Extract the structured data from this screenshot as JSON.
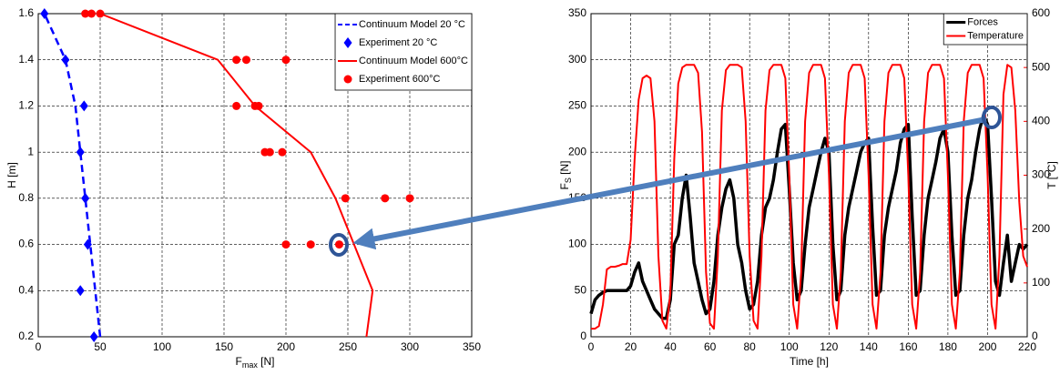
{
  "chart_data": [
    {
      "type": "line",
      "xlabel_parts": [
        "F",
        "max",
        " [N]"
      ],
      "ylabel": "H [m]",
      "xlim": [
        0,
        350
      ],
      "xticks": [
        0,
        50,
        100,
        150,
        200,
        250,
        300,
        350
      ],
      "ylim": [
        0.2,
        1.6
      ],
      "yticks": [
        0.2,
        0.4,
        0.6,
        0.8,
        1,
        1.2,
        1.4,
        1.6
      ],
      "grid": true,
      "legend": "upper right",
      "series": [
        {
          "name": "Continuum Model 20 °C",
          "color": "#0000ff",
          "style": "dashed",
          "x": [
            50,
            46,
            42,
            38,
            34,
            30,
            22,
            5
          ],
          "values": [
            0.2,
            0.4,
            0.6,
            0.8,
            1,
            1.2,
            1.4,
            1.6
          ]
        },
        {
          "name": "Experiment 20 °C",
          "color": "#0000ff",
          "style": "diamond",
          "x": [
            45,
            34,
            40,
            38,
            34,
            37,
            22,
            5
          ],
          "values": [
            0.2,
            0.4,
            0.6,
            0.8,
            1,
            1.2,
            1.4,
            1.6
          ]
        },
        {
          "name": "Continuum Model 600°C",
          "color": "#ff0000",
          "style": "solid",
          "x": [
            265,
            270,
            255,
            240,
            220,
            175,
            145,
            50
          ],
          "values": [
            0.2,
            0.4,
            0.6,
            0.8,
            1,
            1.2,
            1.4,
            1.6
          ]
        },
        {
          "name": "Experiment 600°C",
          "color": "#ff0000",
          "style": "circle",
          "x": [
            38,
            43,
            50,
            160,
            168,
            200,
            160,
            175,
            178,
            183,
            187,
            197,
            248,
            280,
            300,
            200,
            220,
            243
          ],
          "values": [
            1.6,
            1.6,
            1.6,
            1.4,
            1.4,
            1.4,
            1.2,
            1.2,
            1.2,
            1,
            1,
            1,
            0.8,
            0.8,
            0.8,
            0.6,
            0.6,
            0.6
          ]
        }
      ]
    },
    {
      "type": "line",
      "xlabel_parts": [
        "Time [h]"
      ],
      "ylabel_parts": [
        "F",
        "S",
        " [N]"
      ],
      "y2label": "T [°C]",
      "xlim": [
        0,
        220
      ],
      "xticks": [
        0,
        20,
        40,
        60,
        80,
        100,
        120,
        140,
        160,
        180,
        200,
        220
      ],
      "ylim": [
        0,
        350
      ],
      "yticks": [
        0,
        50,
        100,
        150,
        200,
        250,
        300,
        350
      ],
      "y2lim": [
        0,
        600
      ],
      "y2ticks": [
        0,
        100,
        200,
        300,
        400,
        500,
        600
      ],
      "y2color": "#ff0000",
      "grid": true,
      "legend": "upper right",
      "x": [
        0,
        2,
        4,
        6,
        8,
        10,
        12,
        14,
        16,
        18,
        20,
        22,
        24,
        26,
        28,
        30,
        32,
        34,
        36,
        38,
        40,
        42,
        44,
        46,
        48,
        50,
        52,
        54,
        56,
        58,
        60,
        62,
        64,
        66,
        68,
        70,
        72,
        74,
        76,
        78,
        80,
        82,
        84,
        86,
        88,
        90,
        92,
        94,
        96,
        98,
        100,
        102,
        104,
        106,
        108,
        110,
        112,
        114,
        116,
        118,
        120,
        122,
        124,
        126,
        128,
        130,
        132,
        134,
        136,
        138,
        140,
        142,
        144,
        146,
        148,
        150,
        152,
        154,
        156,
        158,
        160,
        162,
        164,
        166,
        168,
        170,
        172,
        174,
        176,
        178,
        180,
        182,
        184,
        186,
        188,
        190,
        192,
        194,
        196,
        198,
        200,
        202,
        204,
        206,
        208,
        210,
        212,
        214,
        216,
        218,
        220
      ],
      "series": [
        {
          "name": "Forces",
          "color": "#000000",
          "style": "thick",
          "values": [
            25,
            40,
            45,
            48,
            50,
            50,
            50,
            50,
            50,
            50,
            55,
            70,
            80,
            60,
            50,
            40,
            30,
            25,
            20,
            20,
            40,
            100,
            110,
            150,
            175,
            130,
            80,
            60,
            40,
            25,
            30,
            60,
            110,
            140,
            160,
            170,
            150,
            100,
            80,
            50,
            30,
            35,
            60,
            110,
            140,
            150,
            170,
            200,
            225,
            230,
            160,
            80,
            40,
            50,
            100,
            140,
            160,
            180,
            200,
            215,
            200,
            100,
            40,
            50,
            110,
            140,
            160,
            180,
            200,
            210,
            215,
            120,
            45,
            50,
            110,
            140,
            160,
            180,
            210,
            225,
            230,
            130,
            45,
            50,
            110,
            150,
            170,
            190,
            215,
            225,
            200,
            110,
            45,
            50,
            110,
            150,
            170,
            200,
            225,
            240,
            230,
            150,
            60,
            45,
            80,
            110,
            60,
            80,
            100,
            95,
            100
          ]
        },
        {
          "name": "Temperature",
          "color": "#ff0000",
          "style": "solid",
          "axis": "y2",
          "values": [
            15,
            15,
            20,
            60,
            125,
            130,
            130,
            132,
            135,
            135,
            180,
            330,
            440,
            480,
            485,
            480,
            400,
            150,
            30,
            15,
            80,
            330,
            470,
            500,
            505,
            505,
            505,
            490,
            380,
            120,
            25,
            15,
            150,
            420,
            495,
            505,
            505,
            505,
            500,
            400,
            150,
            30,
            15,
            150,
            420,
            495,
            505,
            505,
            505,
            480,
            300,
            60,
            15,
            120,
            400,
            490,
            505,
            505,
            505,
            480,
            300,
            60,
            15,
            120,
            400,
            490,
            505,
            505,
            505,
            480,
            300,
            60,
            15,
            120,
            400,
            490,
            505,
            505,
            505,
            480,
            300,
            60,
            15,
            120,
            400,
            490,
            505,
            505,
            505,
            480,
            300,
            60,
            15,
            120,
            400,
            490,
            505,
            505,
            505,
            480,
            300,
            60,
            15,
            150,
            450,
            505,
            500,
            420,
            250,
            150,
            130
          ]
        }
      ]
    }
  ]
}
